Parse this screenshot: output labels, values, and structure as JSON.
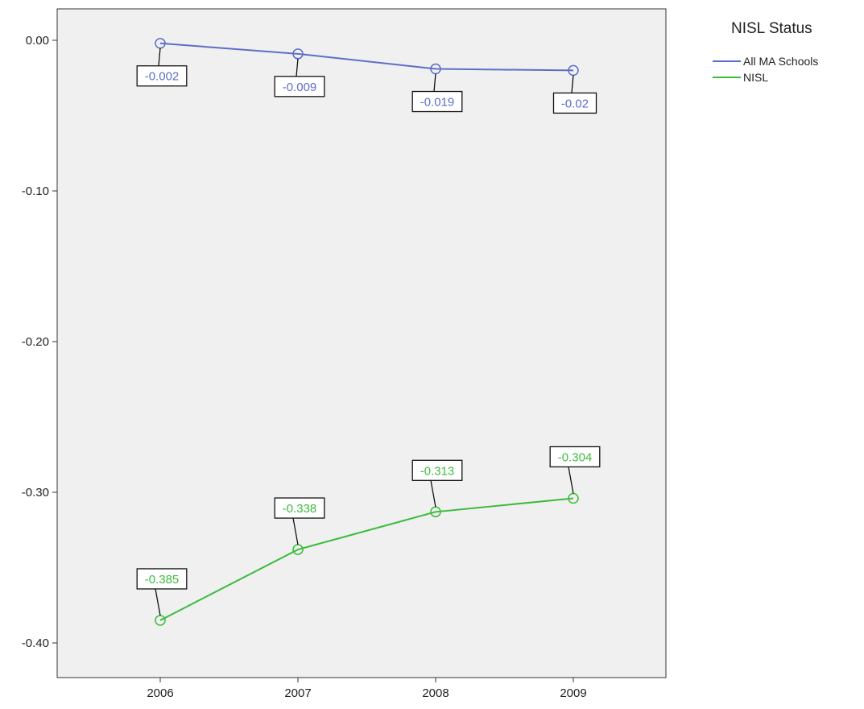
{
  "chart_data": {
    "type": "line",
    "title": "",
    "xlabel": "",
    "ylabel": "",
    "categories": [
      "2006",
      "2007",
      "2008",
      "2009"
    ],
    "ylim": [
      -0.42,
      0.02
    ],
    "y_ticks": [
      "0.00",
      "-0.10",
      "-0.20",
      "-0.30",
      "-0.40"
    ],
    "y_tick_values": [
      0.0,
      -0.1,
      -0.2,
      -0.3,
      -0.4
    ],
    "grid": false,
    "legend": {
      "title": "NISL Status",
      "placement": "top-right outside plot"
    },
    "plot_background": "#f0f0f0",
    "series": [
      {
        "name": "All MA Schools",
        "color": "#5b6fc7",
        "values": [
          -0.002,
          -0.009,
          -0.019,
          -0.02
        ],
        "labels": [
          "-0.002",
          "-0.009",
          "-0.019",
          "-0.02"
        ],
        "label_position": "below"
      },
      {
        "name": "NISL",
        "color": "#3dbb3d",
        "values": [
          -0.385,
          -0.338,
          -0.313,
          -0.304
        ],
        "labels": [
          "-0.385",
          "-0.338",
          "-0.313",
          "-0.304"
        ],
        "label_position": "above"
      }
    ]
  }
}
